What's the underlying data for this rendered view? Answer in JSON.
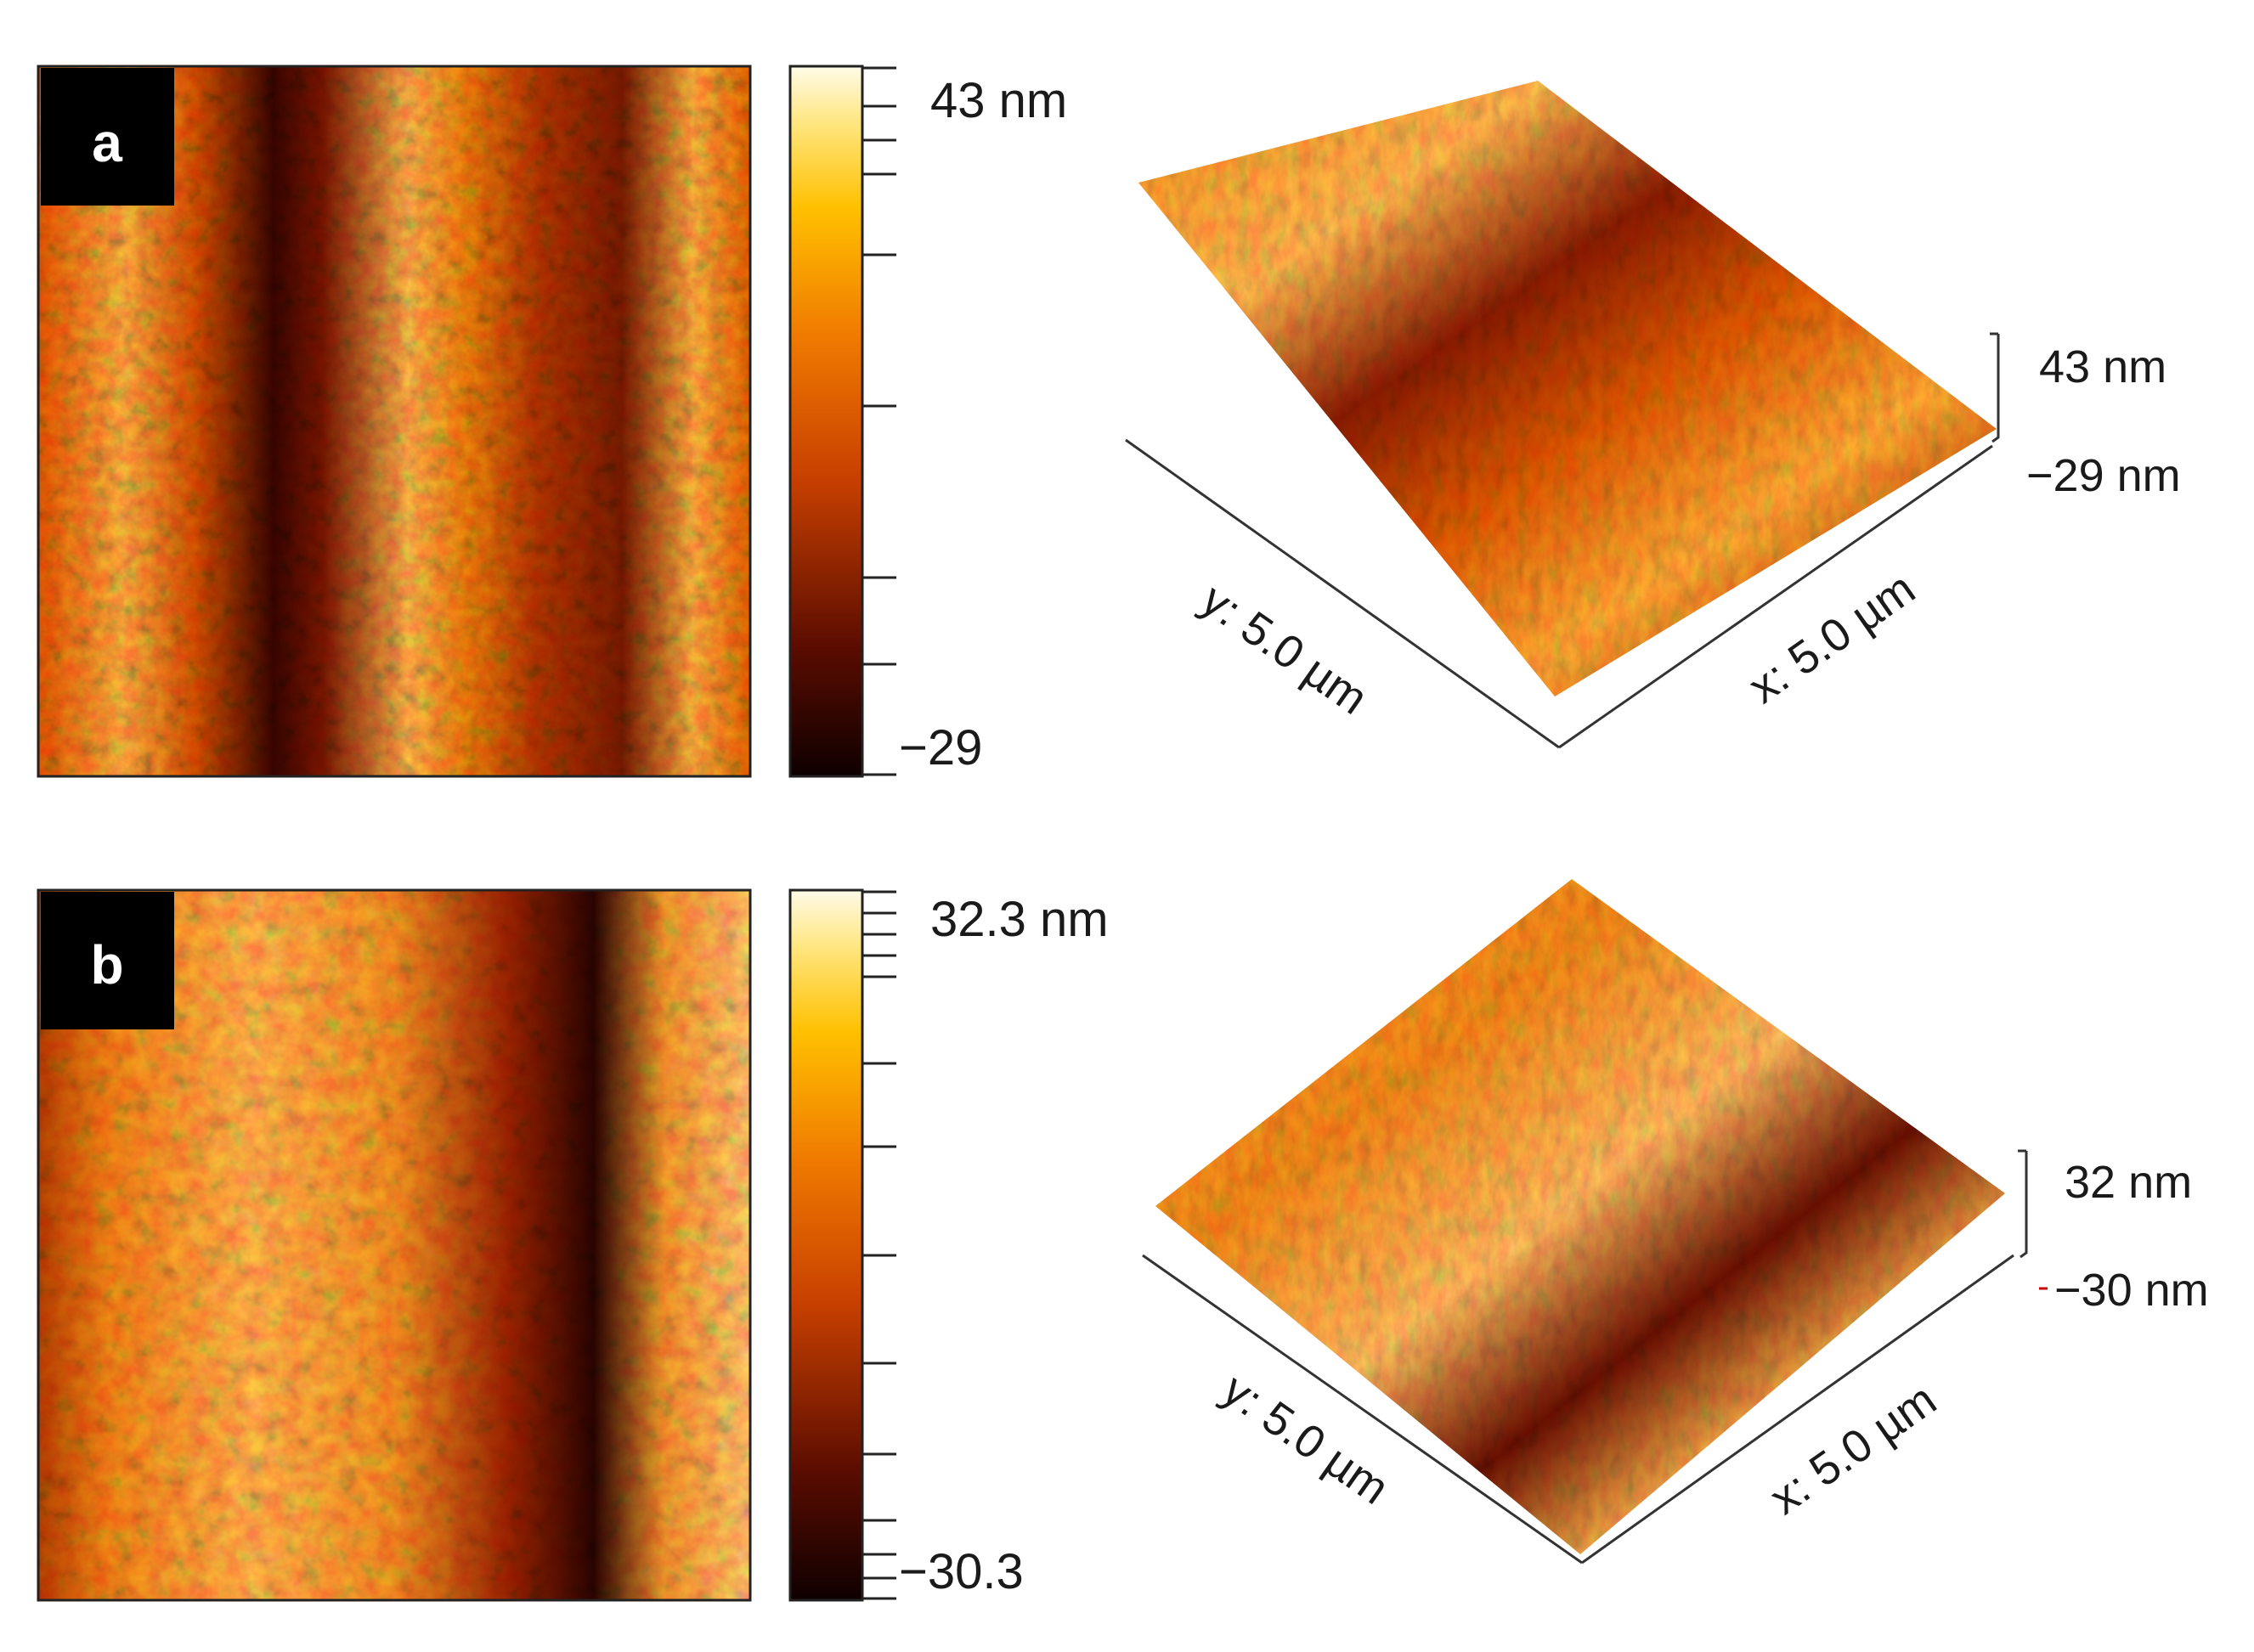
{
  "panels": [
    {
      "label": "a",
      "colorbar": {
        "max_label": "43 nm",
        "min_label": "−29"
      },
      "view3d": {
        "y_axis": "y: 5.0 µm",
        "x_axis": "x: 5.0 µm",
        "z_max": "43 nm",
        "z_min": "−29 nm"
      }
    },
    {
      "label": "b",
      "colorbar": {
        "max_label": "32.3 nm",
        "min_label": "−30.3"
      },
      "view3d": {
        "y_axis": "y: 5.0 µm",
        "x_axis": "x: 5.0 µm",
        "z_max": "32 nm",
        "z_min": "−30 nm"
      }
    }
  ],
  "colors": {
    "dark": "#1e0000",
    "deep_red": "#7a1a00",
    "orange": "#e06a00",
    "amber": "#f7a000",
    "yellow": "#ffd54a",
    "light": "#fffbe8"
  }
}
